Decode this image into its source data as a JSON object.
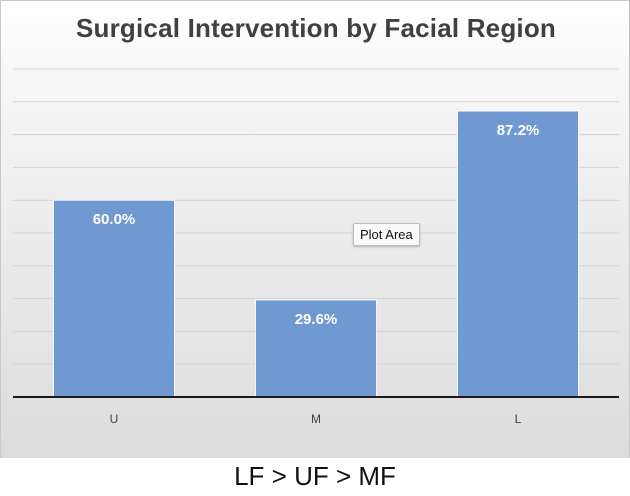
{
  "chart_data": {
    "type": "bar",
    "title": "Surgical Intervention by Facial Region",
    "categories": [
      "U",
      "M",
      "L"
    ],
    "values": [
      60.0,
      29.6,
      87.2
    ],
    "data_labels": [
      "60.0%",
      "29.6%",
      "87.2%"
    ],
    "ylim": [
      0,
      100
    ],
    "grid": true,
    "xlabel": "",
    "ylabel": "",
    "bar_color": "#7099d1"
  },
  "tooltip": {
    "label": "Plot Area"
  },
  "footer": {
    "text": "LF > UF > MF"
  }
}
